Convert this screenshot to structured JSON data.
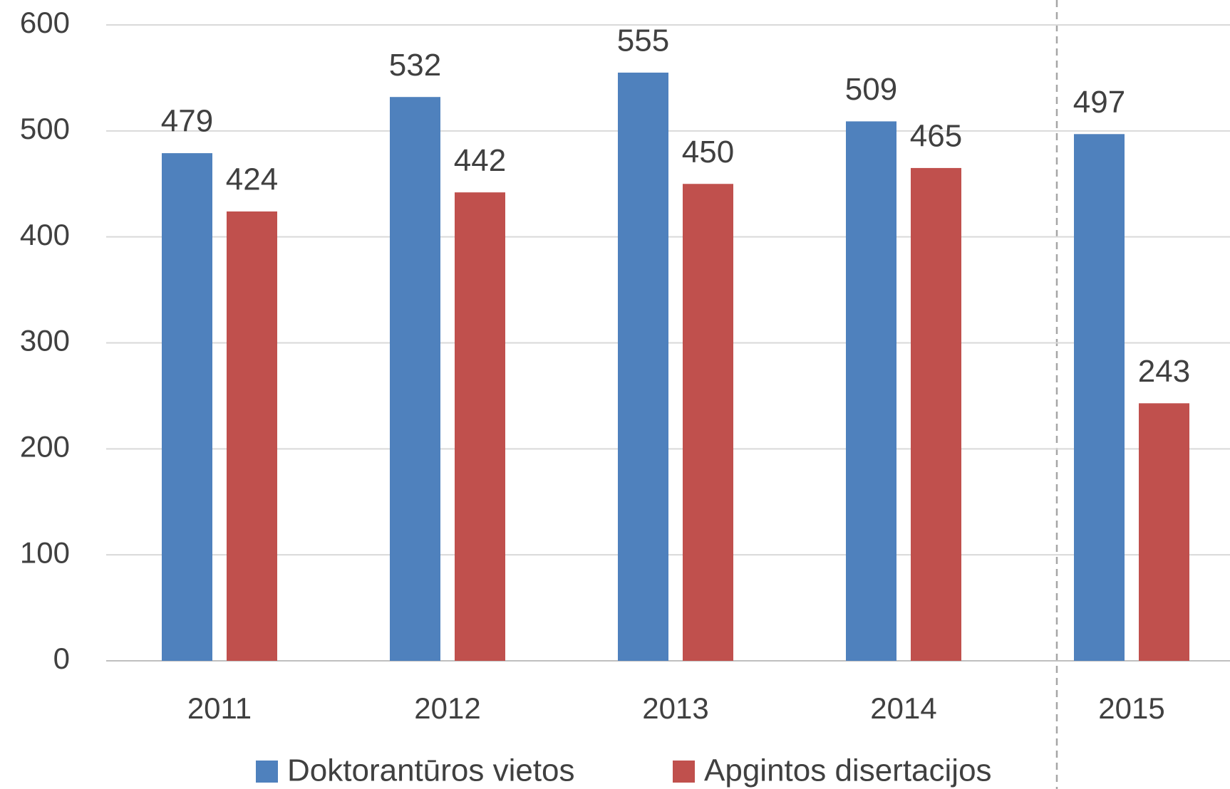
{
  "chart_data": {
    "type": "bar",
    "categories": [
      "2011",
      "2012",
      "2013",
      "2014",
      "2015"
    ],
    "series": [
      {
        "name": "Doktorantūros vietos",
        "color": "#4f81bd",
        "values": [
          479,
          532,
          555,
          509,
          497
        ]
      },
      {
        "name": "Apgintos disertacijos",
        "color": "#c0504d",
        "values": [
          424,
          442,
          450,
          465,
          243
        ]
      }
    ],
    "ylim": [
      0,
      600
    ],
    "yticks": [
      0,
      100,
      200,
      300,
      400,
      500,
      600
    ],
    "grid": true,
    "legend": "bottom"
  }
}
